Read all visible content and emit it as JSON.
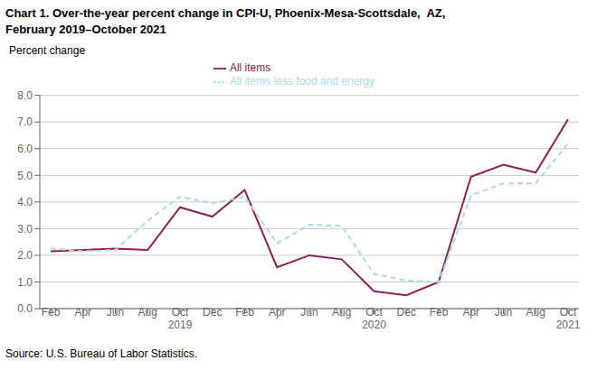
{
  "chart_data": {
    "type": "line",
    "title": "Chart 1. Over-the-year percent change in CPI-U, Phoenix-Mesa-Scottsdale,  AZ,",
    "subtitle": "February 2019–October 2021",
    "y_label": "Percent change",
    "annotations": [
      "Source: U.S. Bureau of Labor Statistics."
    ],
    "categories": [
      "Feb",
      "Apr",
      "Jun",
      "Aug",
      "Oct\n2019",
      "Dec",
      "Feb",
      "Apr",
      "Jun",
      "Aug",
      "Oct\n2020",
      "Dec",
      "Feb",
      "Apr",
      "Jun",
      "Aug",
      "Oct\n2021"
    ],
    "series": [
      {
        "name": "All items",
        "color": "#8B2252",
        "line_style": "solid",
        "values": [
          2.15,
          2.2,
          2.25,
          2.2,
          3.8,
          3.45,
          4.45,
          1.55,
          2.0,
          1.85,
          0.65,
          0.5,
          1.0,
          4.95,
          5.4,
          5.1,
          7.1
        ]
      },
      {
        "name": "All items less food and energy",
        "color": "#ADD8E6",
        "line_style": "dashed",
        "values": [
          2.25,
          2.15,
          2.2,
          3.3,
          4.2,
          3.95,
          4.2,
          2.45,
          3.15,
          3.1,
          1.3,
          1.05,
          1.0,
          4.25,
          4.7,
          4.7,
          6.2
        ]
      }
    ],
    "ylim": [
      0.0,
      8.0
    ],
    "yticks": [
      {
        "value": 0.0,
        "label": "0.0"
      },
      {
        "value": 1.0,
        "label": "1.0"
      },
      {
        "value": 2.0,
        "label": "2.0"
      },
      {
        "value": 3.0,
        "label": "3.0"
      },
      {
        "value": 4.0,
        "label": "4.0"
      },
      {
        "value": 5.0,
        "label": "5.0"
      },
      {
        "value": 6.0,
        "label": "6.0"
      },
      {
        "value": 7.0,
        "label": "7.0"
      },
      {
        "value": 8.0,
        "label": "8.0"
      }
    ],
    "grid": true,
    "legend": "top"
  }
}
